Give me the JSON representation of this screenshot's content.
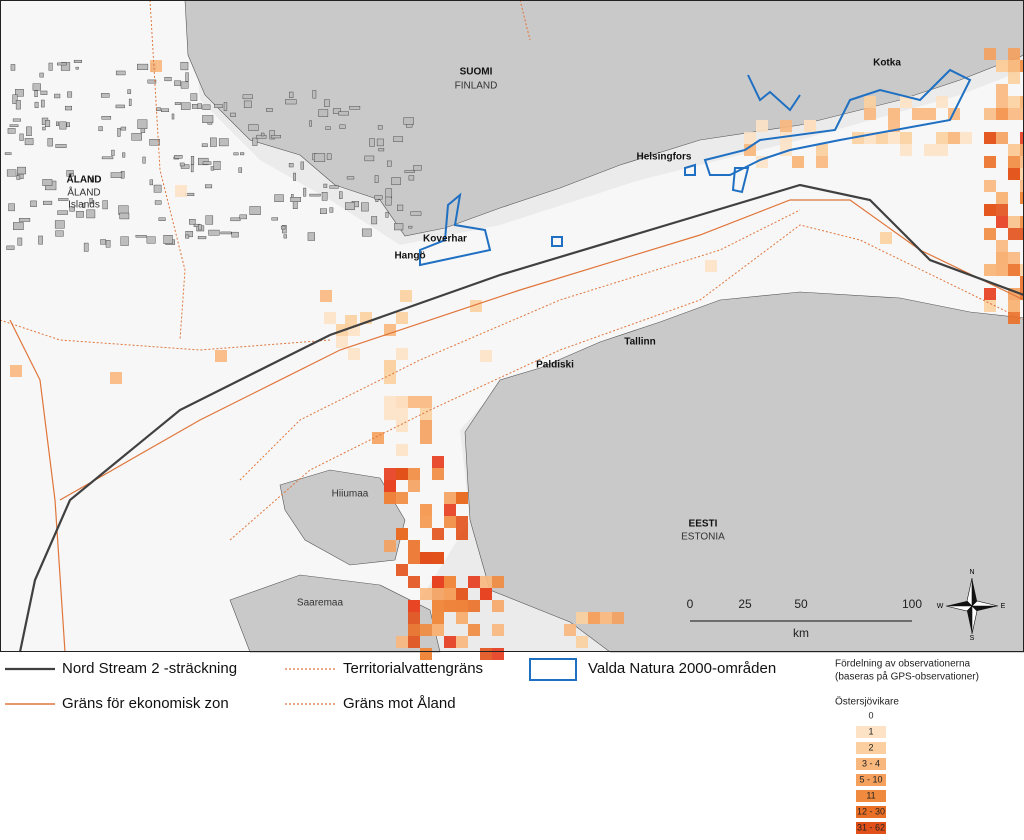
{
  "places": {
    "suomi": "SUOMI",
    "finland": "FINLAND",
    "aland": "ÅLAND",
    "aland_sv": "ÅLAND",
    "aland_en": "Islands",
    "kotka": "Kotka",
    "helsingfors": "Helsingfors",
    "koverhar": "Koverhar",
    "hango": "Hangö",
    "paldiski": "Paldiski",
    "tallinn": "Tallinn",
    "hiiumaa": "Hiiumaa",
    "saaremaa": "Saaremaa",
    "eesti": "EESTI",
    "estonia": "ESTONIA"
  },
  "scale": {
    "ticks": [
      "0",
      "25",
      "50",
      "100"
    ],
    "unit": "km"
  },
  "compass": {
    "n": "N",
    "e": "E",
    "s": "S",
    "w": "W"
  },
  "legend": {
    "lines": [
      {
        "label": "Nord Stream 2 -sträckning",
        "color": "#404040"
      },
      {
        "label": "Gräns för ekonomisk zon",
        "color": "#e0753a"
      },
      {
        "label": "Territorialvattengräns",
        "color": "#e0753a"
      },
      {
        "label": "Gräns mot Åland",
        "color": "#e0753a"
      },
      {
        "label": "Valda Natura 2000-områden",
        "color": "#1f6fc2"
      }
    ],
    "distribution_title": "Fördelning av observationerna",
    "distribution_subtitle": "(baseras på GPS-observationer)",
    "species": "Östersjövikare",
    "classes": [
      {
        "label": "0",
        "color": "#ffffff"
      },
      {
        "label": "1",
        "color": "#fde2c6"
      },
      {
        "label": "2",
        "color": "#fbcf9f"
      },
      {
        "label": "3 - 4",
        "color": "#f8b77c"
      },
      {
        "label": "5 - 10",
        "color": "#f5a05c"
      },
      {
        "label": "11",
        "color": "#f08a3e"
      },
      {
        "label": "12 - 30",
        "color": "#ea6f26"
      },
      {
        "label": "31 - 62",
        "color": "#e2501a"
      }
    ]
  }
}
